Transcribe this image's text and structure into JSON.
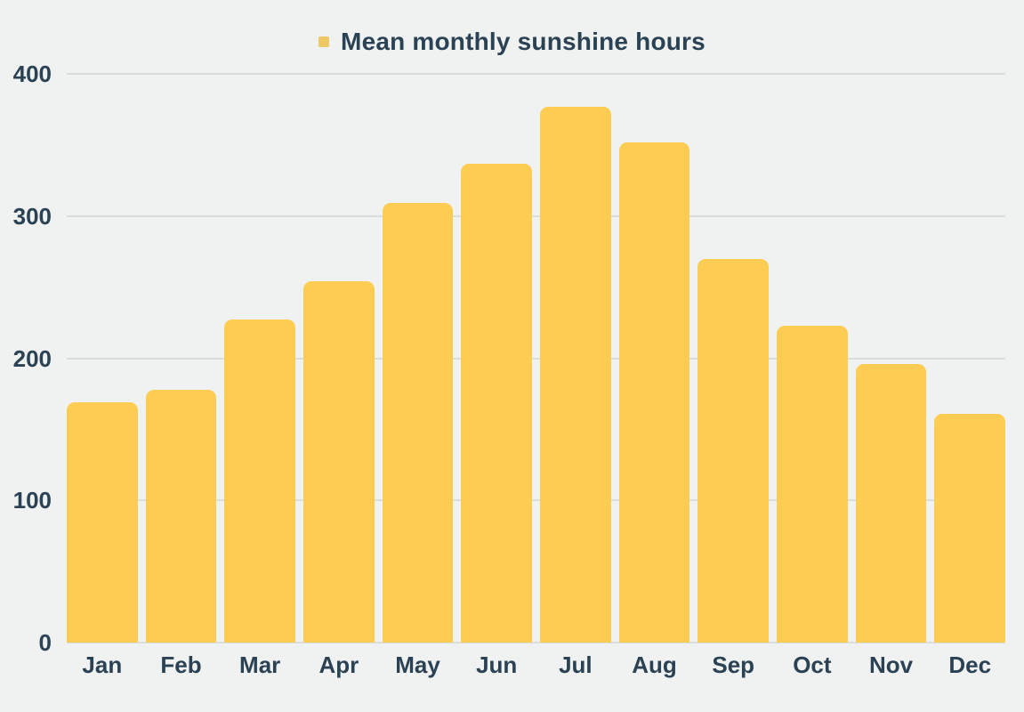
{
  "colors": {
    "background": "#F0F2F1",
    "bar": "#FDCC52",
    "legend_marker": "#EDC863",
    "text": "#2B4254",
    "gridline": "#D9DDDB"
  },
  "legend": {
    "label": "Mean monthly sunshine hours"
  },
  "chart_data": {
    "type": "bar",
    "title": "Mean monthly sunshine hours",
    "categories": [
      "Jan",
      "Feb",
      "Mar",
      "Apr",
      "May",
      "Jun",
      "Jul",
      "Aug",
      "Sep",
      "Oct",
      "Nov",
      "Dec"
    ],
    "values": [
      169,
      178,
      227,
      254,
      309,
      337,
      377,
      352,
      270,
      223,
      196,
      161
    ],
    "xlabel": "",
    "ylabel": "",
    "ylim": [
      0,
      400
    ],
    "y_ticks": [
      0,
      100,
      200,
      300,
      400
    ],
    "grid": true,
    "legend_position": "top-center",
    "bar_style": "rounded-top"
  }
}
